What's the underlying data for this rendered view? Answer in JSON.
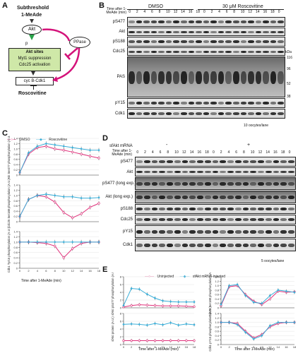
{
  "panels": {
    "A": "A",
    "B": "B",
    "C": "C",
    "D": "D",
    "E": "E"
  },
  "panelA": {
    "subthreshold": "Subthreshold",
    "mead": "1-MeAde",
    "akt": "Akt",
    "p": "p",
    "ppase": "PPase",
    "sites_title": "Akt sites",
    "sites_line2": "Myt1 suppression",
    "sites_line3": "Cdc25 activation",
    "cdk": "cyc B-Cdk1",
    "roscovitine": "Roscovitine",
    "colors": {
      "arrow": "#d4127a",
      "green": "#29a34a",
      "box": "#cfe8a8"
    }
  },
  "panelB": {
    "time_label": "Time after 1-MeAde (min)",
    "groups": [
      "DMSO",
      "30 μM Roscovitine"
    ],
    "times": [
      "0",
      "2",
      "4",
      "6",
      "8",
      "10",
      "12",
      "14",
      "16",
      "18",
      "0",
      "2",
      "4",
      "6",
      "8",
      "10",
      "12",
      "14",
      "16",
      "18",
      "0"
    ],
    "rows": [
      "pS477",
      "Akt",
      "pS188",
      "Cdc25",
      "PAS",
      "pY15",
      "Cdk1"
    ],
    "kda_label": "kDa",
    "kda": [
      "116",
      "96",
      "52",
      "38"
    ],
    "footnote": "10 oocytes/lane"
  },
  "panelC": {
    "legend": [
      "DMSO",
      "Roscovitine"
    ],
    "xlabel": "Time after 1-MeAde (min)",
    "colors": {
      "dmso": "#e0307a",
      "rosco": "#3aaed8"
    }
  },
  "panelD": {
    "header": "sfAkt mRNA",
    "time_label": "Time after 1-MeAde (min)",
    "signs": [
      "-",
      "+"
    ],
    "times": [
      "0",
      "2",
      "4",
      "6",
      "8",
      "10",
      "12",
      "14",
      "16",
      "18",
      "0",
      "2",
      "4",
      "6",
      "8",
      "10",
      "12",
      "14",
      "16",
      "18",
      "0"
    ],
    "rows": [
      "pS477",
      "Akt",
      "pS477 (long exp.)",
      "Akt (long exp.)",
      "pS188",
      "Cdc25",
      "pY15",
      "Cdk1"
    ],
    "footnote": "5 oocytes/lane"
  },
  "panelE": {
    "legend": [
      "Uninjected",
      "sfAkt mRNA-injected"
    ],
    "xlabel": "Time after 1-MeAde (min)",
    "colors": {
      "uninjected": "#e0307a",
      "injected": "#3aaed8"
    }
  },
  "chart_data": [
    {
      "type": "line",
      "panel": "C-top",
      "ylabel": "Akt Ser477 phosphorylation (A.U.)",
      "x": [
        0,
        2,
        4,
        6,
        8,
        10,
        12,
        14,
        16,
        18
      ],
      "ylim": [
        0,
        1.4
      ],
      "yticks": [
        "0",
        "0.2",
        "0.4",
        "0.6",
        "0.8",
        "1.0",
        "1.2",
        "1.4"
      ],
      "xticks": [
        "0",
        "2",
        "4",
        "6",
        "8",
        "10",
        "12",
        "14",
        "16",
        "18"
      ],
      "series": [
        {
          "name": "DMSO",
          "values": [
            0.1,
            0.8,
            1.05,
            1.1,
            1.0,
            0.95,
            0.88,
            0.8,
            0.72,
            0.65
          ]
        },
        {
          "name": "Roscovitine",
          "values": [
            0.1,
            0.85,
            1.1,
            1.2,
            1.15,
            1.1,
            1.05,
            1.0,
            0.95,
            0.95
          ]
        }
      ]
    },
    {
      "type": "line",
      "panel": "C-mid",
      "ylabel": "Cdc25 Ser188 phosphorylation (A.U.)",
      "x": [
        0,
        2,
        4,
        6,
        8,
        10,
        12,
        14,
        16,
        18
      ],
      "ylim": [
        0,
        1.4
      ],
      "yticks": [
        "0",
        "0.2",
        "0.4",
        "0.6",
        "0.8",
        "1.0",
        "1.2",
        "1.4"
      ],
      "xticks": [
        "0",
        "2",
        "4",
        "6",
        "8",
        "10",
        "12",
        "14",
        "16",
        "18"
      ],
      "series": [
        {
          "name": "DMSO",
          "values": [
            0.2,
            0.85,
            1.0,
            0.95,
            0.75,
            0.35,
            0.15,
            0.3,
            0.55,
            0.7
          ]
        },
        {
          "name": "Roscovitine",
          "values": [
            0.2,
            0.85,
            1.0,
            1.05,
            1.0,
            0.95,
            0.95,
            0.9,
            0.9,
            0.92
          ]
        }
      ]
    },
    {
      "type": "line",
      "panel": "C-bottom",
      "ylabel": "Cdk1 Tyr15 phosphorylation (A.U.)",
      "x": [
        0,
        2,
        4,
        6,
        8,
        10,
        12,
        14,
        16,
        18
      ],
      "ylim": [
        0,
        1.4
      ],
      "yticks": [
        "0",
        "0.2",
        "0.4",
        "0.6",
        "0.8",
        "1.0",
        "1.2",
        "1.4"
      ],
      "xticks": [
        "0",
        "2",
        "4",
        "6",
        "8",
        "10",
        "12",
        "14",
        "16",
        "18"
      ],
      "series": [
        {
          "name": "DMSO",
          "values": [
            1.0,
            1.0,
            0.98,
            0.95,
            0.85,
            0.4,
            0.75,
            0.95,
            1.0,
            1.0
          ]
        },
        {
          "name": "Roscovitine",
          "values": [
            1.0,
            1.0,
            1.0,
            1.0,
            1.0,
            1.0,
            1.0,
            1.0,
            1.0,
            1.0
          ]
        }
      ]
    },
    {
      "type": "line",
      "panel": "E-left-top",
      "ylabel": "sfAkt pS477 phosphorylation (A.U.)",
      "x": [
        0,
        2,
        4,
        6,
        8,
        10,
        12,
        14,
        16,
        18
      ],
      "ylim": [
        0,
        8
      ],
      "yticks": [
        "0",
        "2",
        "4",
        "6",
        "8"
      ],
      "xticks": [
        "0",
        "2",
        "4",
        "6",
        "8",
        "10",
        "12",
        "14",
        "16",
        "18"
      ],
      "series": [
        {
          "name": "Uninjected",
          "values": [
            0.2,
            0.6,
            0.8,
            0.7,
            0.6,
            0.5,
            0.5,
            0.5,
            0.4,
            0.3
          ]
        },
        {
          "name": "sfAkt mRNA-injected",
          "values": [
            0.6,
            5.0,
            4.8,
            3.5,
            2.5,
            1.8,
            1.6,
            1.5,
            1.5,
            1.5
          ]
        }
      ]
    },
    {
      "type": "line",
      "panel": "E-left-bottom",
      "ylabel": "sfAkt protein (A.U.)",
      "x": [
        0,
        2,
        4,
        6,
        8,
        10,
        12,
        14,
        16,
        18
      ],
      "ylim": [
        0,
        8
      ],
      "yticks": [
        "0",
        "2",
        "4",
        "6",
        "8"
      ],
      "xticks": [
        "0",
        "2",
        "4",
        "6",
        "8",
        "10",
        "12",
        "14",
        "16",
        "18"
      ],
      "series": [
        {
          "name": "Uninjected",
          "values": [
            1,
            1,
            1,
            1,
            1,
            1,
            1,
            1,
            1,
            1
          ]
        },
        {
          "name": "sfAkt mRNA-injected",
          "values": [
            5.2,
            5.3,
            5.2,
            5.0,
            5.4,
            5.1,
            5.6,
            5.0,
            5.3,
            5.1
          ]
        }
      ]
    },
    {
      "type": "line",
      "panel": "E-right-top",
      "ylabel": "Cdc25 Ser188 phosphorylation (A.U.)",
      "x": [
        0,
        2,
        4,
        6,
        8,
        10,
        12,
        14,
        16,
        18
      ],
      "ylim": [
        0,
        1.4
      ],
      "yticks": [
        "0",
        "0.2",
        "0.4",
        "0.6",
        "0.8",
        "1.0",
        "1.2",
        "1.4"
      ],
      "xticks": [
        "0",
        "2",
        "4",
        "6",
        "8",
        "10",
        "12",
        "14",
        "16",
        "18"
      ],
      "series": [
        {
          "name": "Uninjected",
          "values": [
            0.1,
            0.95,
            1.0,
            0.6,
            0.3,
            0.15,
            0.4,
            0.75,
            0.7,
            0.72
          ]
        },
        {
          "name": "sfAkt mRNA-injected",
          "values": [
            0.15,
            1.0,
            1.05,
            0.55,
            0.25,
            0.2,
            0.55,
            0.8,
            0.75,
            0.7
          ]
        }
      ]
    },
    {
      "type": "line",
      "panel": "E-right-bottom",
      "ylabel": "Cdk1 pY15 phosphorylation (A.U.)",
      "x": [
        0,
        2,
        4,
        6,
        8,
        10,
        12,
        14,
        16,
        18
      ],
      "ylim": [
        0,
        1.4
      ],
      "yticks": [
        "0",
        "0.2",
        "0.4",
        "0.6",
        "0.8",
        "1.0",
        "1.2",
        "1.4"
      ],
      "xticks": [
        "0",
        "2",
        "4",
        "6",
        "8",
        "10",
        "12",
        "14",
        "16",
        "18"
      ],
      "series": [
        {
          "name": "Uninjected",
          "values": [
            1.0,
            1.0,
            0.95,
            0.6,
            0.3,
            0.45,
            0.8,
            0.95,
            1.0,
            1.0
          ]
        },
        {
          "name": "sfAkt mRNA-injected",
          "values": [
            1.0,
            1.0,
            0.9,
            0.55,
            0.25,
            0.4,
            0.85,
            1.0,
            1.0,
            1.0
          ]
        }
      ]
    }
  ]
}
